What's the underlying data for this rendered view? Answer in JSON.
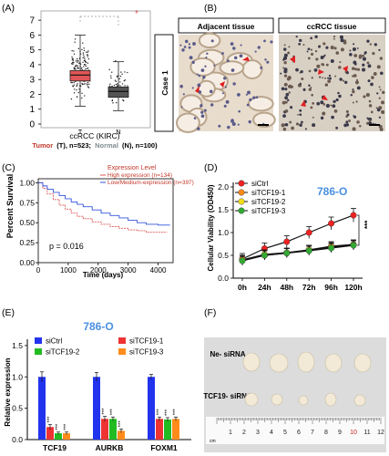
{
  "panels": {
    "A": {
      "label": "(A)",
      "title": "ccRCC (KIRC)",
      "caption": {
        "tumor_name": "Tumor",
        "tumor_code": "(T), n=523;",
        "normal_name": "Normal",
        "normal_code": "(N), n=100)"
      },
      "significance": "*",
      "colors": {
        "tumor": "#e05555",
        "normal": "#555555"
      }
    },
    "B": {
      "label": "(B)",
      "headers": [
        "Adjacent tissue",
        "ccRCC tissue"
      ],
      "row_label": "Case 1"
    },
    "C": {
      "label": "(C)",
      "legend_title": "Expression Level",
      "legend_items": [
        "High expression (n=134)",
        "Low/Medium-expression (n=397)"
      ],
      "p_value": "p = 0.016"
    },
    "D": {
      "label": "(D)",
      "cell_line": "786-O",
      "legend": [
        "siCtrl",
        "siTCF19-1",
        "siTCF19-2",
        "siTCF19-3"
      ],
      "significance": "***"
    },
    "E": {
      "label": "(E)",
      "cell_line": "786-O",
      "legend": [
        "siCtrl",
        "siTCF19-1",
        "siTCF19-2",
        "siTCF19-3"
      ]
    },
    "F": {
      "label": "(F)",
      "row_labels": [
        "Ne-\nsiRNA",
        "TCF19-\nsiRNA"
      ],
      "ruler_unit": "cm",
      "ruler_numbers": [
        "1",
        "2",
        "3",
        "4",
        "5",
        "6",
        "7",
        "8",
        "9",
        "10",
        "11",
        "12"
      ]
    }
  },
  "chart_data": [
    {
      "panel": "A",
      "type": "box",
      "categories": [
        "T",
        "N"
      ],
      "series": [
        {
          "name": "Tumor",
          "q1": 2.9,
          "median": 3.3,
          "q3": 3.6,
          "whisker_low": 1.2,
          "whisker_high": 6.0,
          "color": "#e05555"
        },
        {
          "name": "Normal",
          "q1": 1.8,
          "median": 2.2,
          "q3": 2.5,
          "whisker_low": 0.9,
          "whisker_high": 4.2,
          "color": "#555555"
        }
      ],
      "yticks": [
        0,
        1,
        2,
        3,
        4,
        5,
        6,
        7
      ],
      "ylim": [
        0,
        7.5
      ]
    },
    {
      "panel": "C",
      "type": "line",
      "title": "",
      "xlabel": "Time (days)",
      "ylabel": "Percent Survival",
      "xticks": [
        0,
        1000,
        2000,
        3000,
        4000
      ],
      "yticks": [
        0.0,
        0.25,
        0.5,
        0.75,
        1.0
      ],
      "xlim": [
        0,
        4500
      ],
      "ylim": [
        0,
        1.05
      ],
      "series": [
        {
          "name": "High expression (n=134)",
          "color": "#e05555",
          "x": [
            0,
            150,
            300,
            500,
            700,
            900,
            1100,
            1300,
            1500,
            1800,
            2100,
            2400,
            2700,
            3000,
            3300,
            3600,
            4300
          ],
          "y": [
            1.0,
            0.93,
            0.86,
            0.79,
            0.72,
            0.67,
            0.62,
            0.58,
            0.55,
            0.51,
            0.48,
            0.45,
            0.43,
            0.41,
            0.4,
            0.38,
            0.38
          ]
        },
        {
          "name": "Low/Medium-expression (n=397)",
          "color": "#3355dd",
          "x": [
            0,
            150,
            300,
            500,
            700,
            900,
            1100,
            1300,
            1500,
            1800,
            2100,
            2400,
            2700,
            3000,
            3300,
            3600,
            4000,
            4400
          ],
          "y": [
            1.0,
            0.96,
            0.92,
            0.88,
            0.84,
            0.8,
            0.76,
            0.73,
            0.7,
            0.66,
            0.62,
            0.59,
            0.56,
            0.53,
            0.5,
            0.48,
            0.47,
            0.47
          ]
        }
      ]
    },
    {
      "panel": "D",
      "type": "line",
      "xlabel": "",
      "ylabel": "Cellular Viability (OD450)",
      "categories": [
        "0h",
        "24h",
        "48h",
        "72h",
        "96h",
        "120h"
      ],
      "yticks": [
        0.0,
        0.5,
        1.0,
        1.5,
        2.0
      ],
      "ylim": [
        0,
        2.1
      ],
      "series": [
        {
          "name": "siCtrl",
          "color": "#ee2222",
          "values": [
            0.42,
            0.65,
            0.8,
            1.0,
            1.2,
            1.38
          ],
          "err": [
            0.12,
            0.12,
            0.13,
            0.13,
            0.14,
            0.15
          ]
        },
        {
          "name": "siTCF19-1",
          "color": "#ff8a1a",
          "values": [
            0.4,
            0.5,
            0.55,
            0.62,
            0.7,
            0.74
          ],
          "err": [
            0.1,
            0.1,
            0.1,
            0.1,
            0.1,
            0.1
          ]
        },
        {
          "name": "siTCF19-2",
          "color": "#f2dd1a",
          "values": [
            0.4,
            0.52,
            0.56,
            0.62,
            0.68,
            0.73
          ],
          "err": [
            0.1,
            0.1,
            0.1,
            0.1,
            0.1,
            0.1
          ]
        },
        {
          "name": "siTCF19-3",
          "color": "#33aa33",
          "values": [
            0.38,
            0.5,
            0.55,
            0.6,
            0.66,
            0.72
          ],
          "err": [
            0.1,
            0.1,
            0.1,
            0.1,
            0.1,
            0.1
          ]
        }
      ]
    },
    {
      "panel": "E",
      "type": "bar",
      "ylabel": "Relative expression",
      "categories": [
        "TCF19",
        "AURKB",
        "FOXM1"
      ],
      "yticks": [
        0.0,
        0.5,
        1.0,
        1.5
      ],
      "ylim": [
        0,
        1.6
      ],
      "significance": "***",
      "series": [
        {
          "name": "siCtrl",
          "color": "#2233ee",
          "values": [
            1.0,
            1.0,
            1.0
          ],
          "err": [
            0.08,
            0.07,
            0.04
          ]
        },
        {
          "name": "siTCF19-1",
          "color": "#ee3333",
          "values": [
            0.2,
            0.33,
            0.33
          ],
          "err": [
            0.04,
            0.04,
            0.03
          ]
        },
        {
          "name": "siTCF19-2",
          "color": "#22bb22",
          "values": [
            0.1,
            0.33,
            0.32
          ],
          "err": [
            0.02,
            0.03,
            0.03
          ]
        },
        {
          "name": "siTCF19-3",
          "color": "#ff8c1a",
          "values": [
            0.1,
            0.14,
            0.33
          ],
          "err": [
            0.02,
            0.03,
            0.03
          ]
        }
      ]
    }
  ]
}
